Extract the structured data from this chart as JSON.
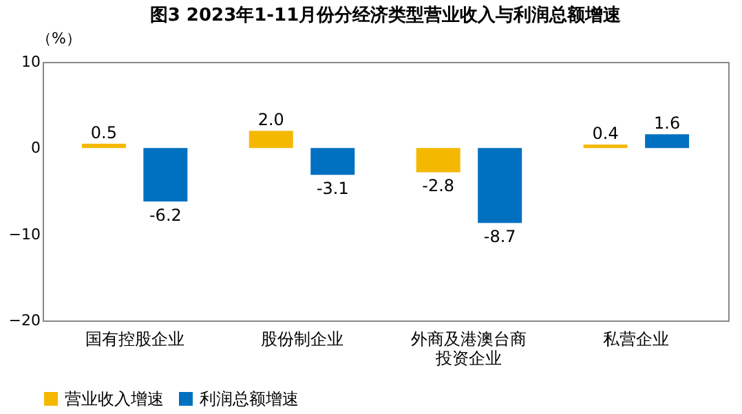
{
  "chart_data": {
    "type": "bar",
    "title": "图3  2023年1-11月份分经济类型营业收入与利润总额增速",
    "ylabel": "（%）",
    "categories": [
      "国有控股企业",
      "股份制企业",
      "外商及港澳台商投资企业",
      "私营企业"
    ],
    "series": [
      {
        "name": "营业收入增速",
        "color": "#f5b800",
        "values": [
          0.5,
          2.0,
          -2.8,
          0.4
        ],
        "value_labels": [
          "0.5",
          "2.0",
          "-2.8",
          "0.4"
        ]
      },
      {
        "name": "利润总额增速",
        "color": "#0070c0",
        "values": [
          -6.2,
          -3.1,
          -8.7,
          1.6
        ],
        "value_labels": [
          "-6.2",
          "-3.1",
          "-8.7",
          "1.6"
        ]
      }
    ],
    "ylim": [
      -20,
      10
    ],
    "yticks": [
      -20,
      -10,
      0,
      10
    ],
    "legend": "bottom",
    "grid": false
  }
}
